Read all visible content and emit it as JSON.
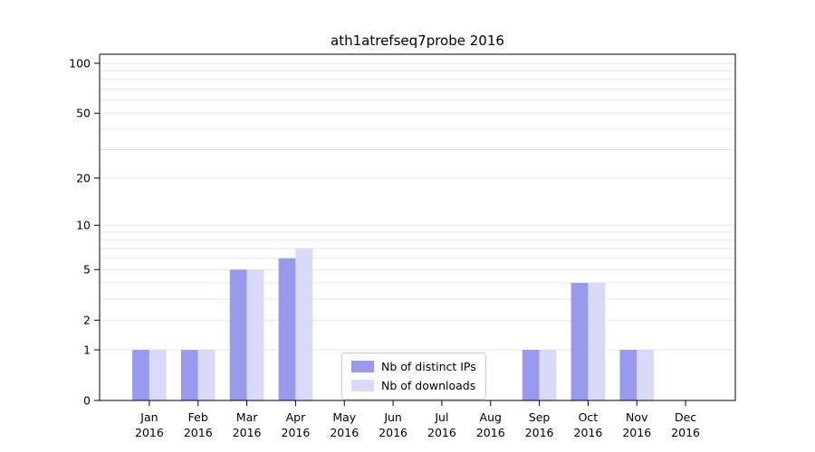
{
  "title": "ath1atrefseq7probe 2016",
  "chart_data": {
    "type": "bar",
    "title": "ath1atrefseq7probe 2016",
    "categories": [
      "Jan",
      "Feb",
      "Mar",
      "Apr",
      "May",
      "Jun",
      "Jul",
      "Aug",
      "Sep",
      "Oct",
      "Nov",
      "Dec"
    ],
    "year_label": "2016",
    "series": [
      {
        "name": "Nb of distinct IPs",
        "color": "#9999ee",
        "values": [
          1,
          1,
          5,
          6,
          0,
          0,
          0,
          0,
          1,
          4,
          1,
          0
        ]
      },
      {
        "name": "Nb of downloads",
        "color": "#d9d9f8",
        "values": [
          1,
          1,
          5,
          7,
          0,
          0,
          0,
          0,
          1,
          4,
          1,
          0
        ]
      }
    ],
    "yscale": "log1p",
    "yticks": [
      0,
      1,
      2,
      5,
      10,
      20,
      50,
      100
    ],
    "minor_gridlines": [
      1,
      2,
      3,
      4,
      5,
      6,
      7,
      8,
      9,
      10,
      20,
      30,
      40,
      50,
      60,
      70,
      80,
      90,
      100
    ],
    "ylim": [
      0,
      113
    ],
    "xlabel": "",
    "ylabel": "",
    "grid": true,
    "legend_position": "lower center"
  },
  "colors": {
    "grid": "#e7e7e7",
    "spine": "#000000",
    "text": "#000000",
    "background": "#ffffff",
    "legend_border": "#cccccc"
  }
}
